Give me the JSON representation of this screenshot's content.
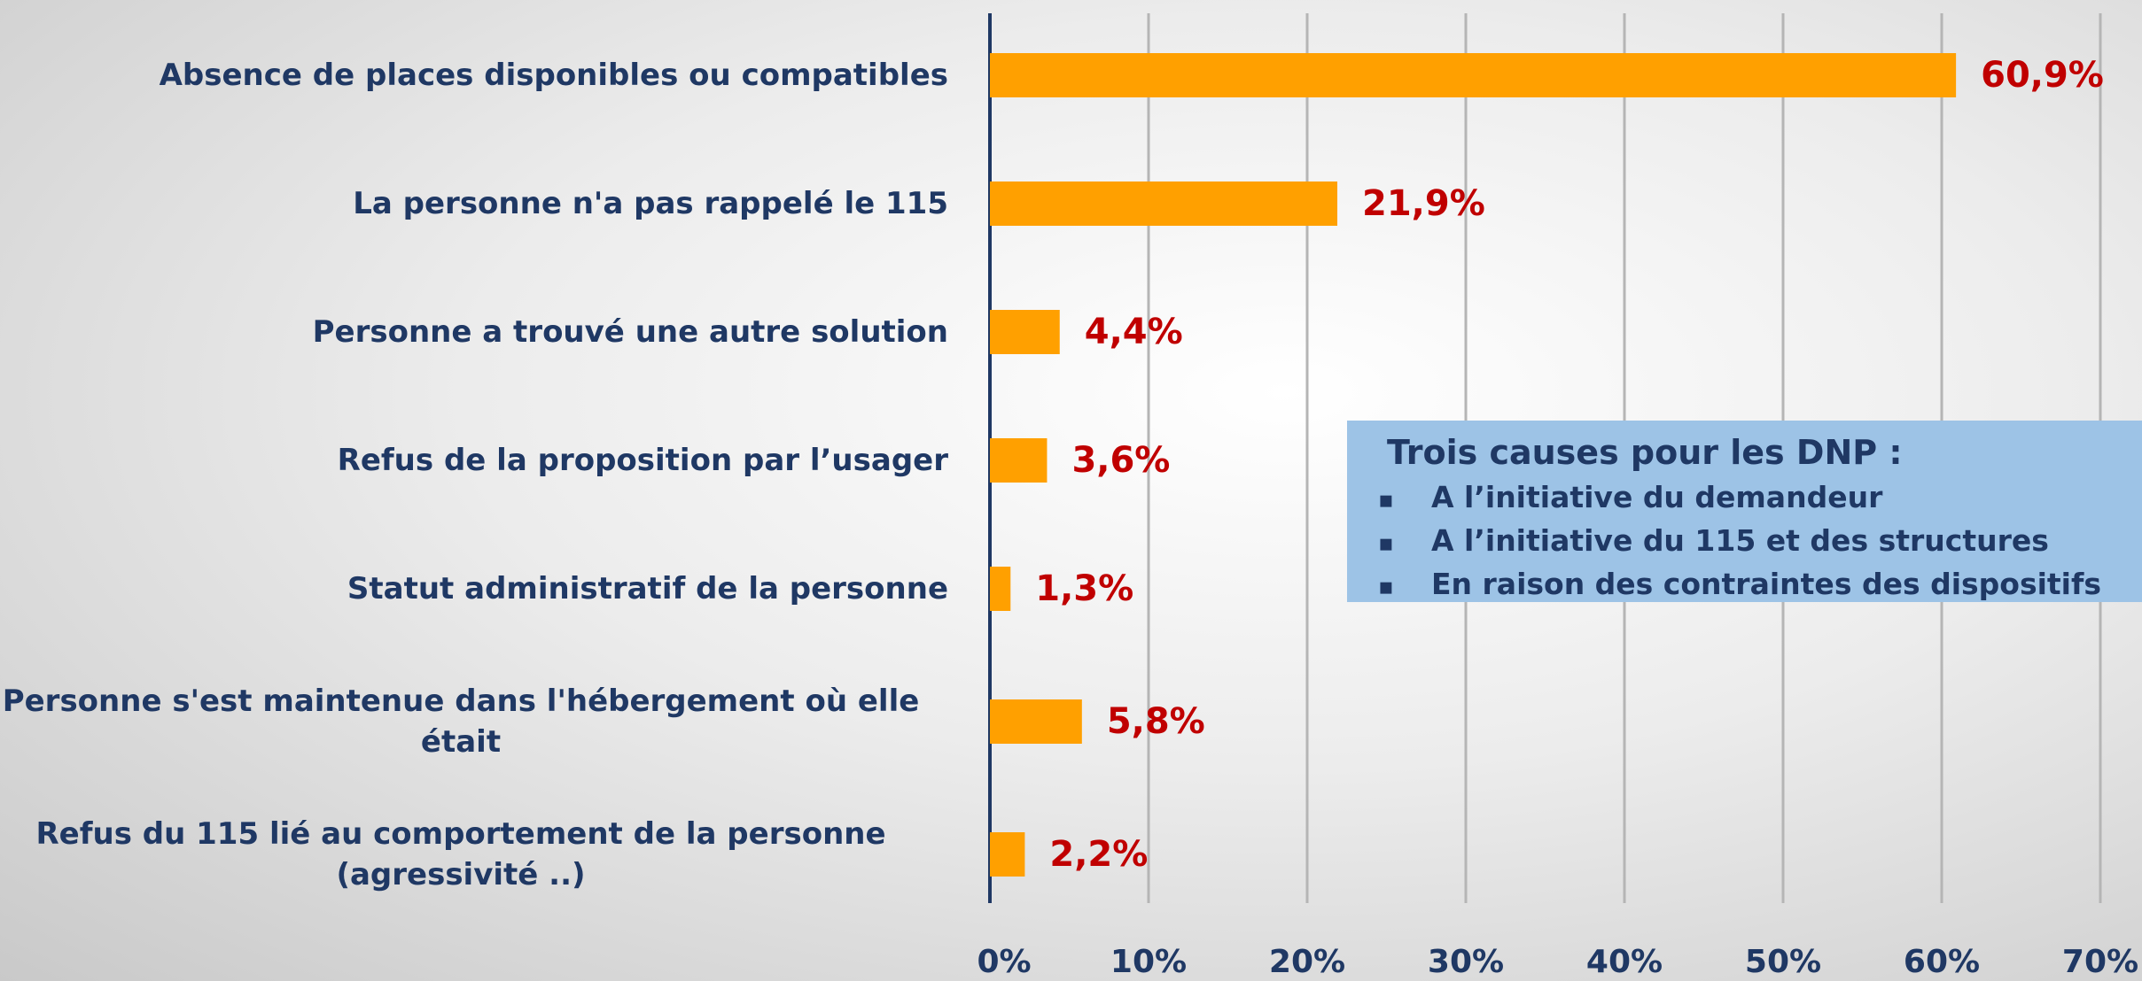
{
  "chart_data": {
    "type": "bar",
    "orientation": "horizontal",
    "categories": [
      "Absence de places disponibles ou compatibles",
      "La personne n'a pas rappelé le 115",
      "Personne a trouvé une autre solution",
      "Refus de la proposition par l’usager",
      "Statut administratif de la personne",
      "Personne s'est maintenue dans l'hébergement où elle\nétait",
      "Refus du 115 lié au comportement de la personne\n(agressivité ..)"
    ],
    "values": [
      60.9,
      21.9,
      4.4,
      3.6,
      1.3,
      5.8,
      2.2
    ],
    "value_labels": [
      "60,9%",
      "21,9%",
      "4,4%",
      "3,6%",
      "1,3%",
      "5,8%",
      "2,2%"
    ],
    "color": "#ffa000",
    "value_label_color": "#c00000",
    "xlim": [
      0,
      70
    ],
    "xticks": [
      {
        "value": 0,
        "label": "0%"
      },
      {
        "value": 10,
        "label": "10%"
      },
      {
        "value": 20,
        "label": "20%"
      },
      {
        "value": 30,
        "label": "30%"
      },
      {
        "value": 40,
        "label": "40%"
      },
      {
        "value": 50,
        "label": "50%"
      },
      {
        "value": 60,
        "label": "60%"
      },
      {
        "value": 70,
        "label": "70%"
      }
    ],
    "grid": true,
    "annotation": {
      "title": "Trois causes pour les DNP :",
      "items": [
        "A l’initiative du demandeur",
        "A l’initiative du 115 et des structures",
        "En raison des contraintes des dispositifs"
      ]
    }
  }
}
